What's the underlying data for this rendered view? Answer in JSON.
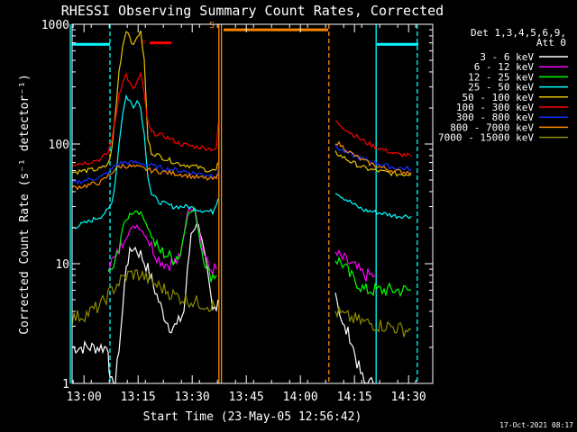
{
  "chart_data": {
    "type": "line",
    "title": "RHESSI Observing Summary Count Rates, Corrected",
    "xlabel": "Start Time (23-May-05 12:56:42)",
    "ylabel": "Corrected Count Rate (s⁻¹ detector⁻¹)",
    "yscale": "log",
    "ylim": [
      1,
      1000
    ],
    "xlim_min": [
      0,
      100
    ],
    "start_time": "12:56:42",
    "x_tick_labels": [
      {
        "t": 3.3,
        "label": "13:00"
      },
      {
        "t": 18.3,
        "label": "13:15"
      },
      {
        "t": 33.3,
        "label": "13:30"
      },
      {
        "t": 48.3,
        "label": "13:45"
      },
      {
        "t": 63.3,
        "label": "14:00"
      },
      {
        "t": 78.3,
        "label": "14:15"
      },
      {
        "t": 93.3,
        "label": "14:30"
      }
    ],
    "y_tick_labels": [
      {
        "v": 1,
        "label": "1"
      },
      {
        "v": 10,
        "label": "10"
      },
      {
        "v": 100,
        "label": "100"
      },
      {
        "v": 1000,
        "label": "1000"
      }
    ],
    "legend_header": [
      "Det 1,3,4,5,6,9,",
      "Att 0"
    ],
    "legend_placement": "right",
    "series": [
      {
        "name": "3 - 6 keV",
        "color": "#ffffff",
        "segments": [
          [
            [
              0,
              2
            ],
            [
              10,
              2
            ],
            [
              10.5,
              1
            ],
            [
              12,
              1
            ],
            [
              14,
              4
            ],
            [
              15,
              10
            ],
            [
              17,
              14
            ],
            [
              19,
              12
            ],
            [
              21,
              9
            ],
            [
              23,
              6
            ],
            [
              25,
              4
            ],
            [
              27,
              3
            ],
            [
              29,
              3
            ],
            [
              31,
              4
            ],
            [
              33,
              18
            ],
            [
              35,
              22
            ],
            [
              37,
              10
            ],
            [
              39,
              4
            ],
            [
              40.5,
              5
            ]
          ],
          [
            [
              73,
              6
            ],
            [
              75,
              3
            ],
            [
              77,
              2.5
            ],
            [
              79,
              1.5
            ],
            [
              81,
              1
            ],
            [
              84,
              1
            ]
          ]
        ]
      },
      {
        "name": "6 - 12 keV",
        "color": "#ff00ff",
        "segments": [
          [
            [
              10,
              10
            ],
            [
              12,
              11
            ],
            [
              14,
              15
            ],
            [
              16,
              19
            ],
            [
              18,
              21
            ],
            [
              20,
              18
            ],
            [
              22,
              14
            ],
            [
              24,
              11
            ],
            [
              26,
              10
            ],
            [
              28,
              10
            ],
            [
              30,
              11
            ],
            [
              32,
              28
            ],
            [
              34,
              30
            ],
            [
              36,
              14
            ],
            [
              38,
              9
            ],
            [
              40,
              9
            ]
          ],
          [
            [
              73,
              12
            ],
            [
              75,
              11
            ],
            [
              77,
              10
            ],
            [
              79,
              9
            ],
            [
              81,
              8
            ],
            [
              84,
              8
            ]
          ]
        ]
      },
      {
        "name": "12 - 25 keV",
        "color": "#00ff00",
        "segments": [
          [
            [
              10,
              8
            ],
            [
              12,
              10
            ],
            [
              14,
              20
            ],
            [
              16,
              26
            ],
            [
              18,
              28
            ],
            [
              20,
              24
            ],
            [
              22,
              17
            ],
            [
              24,
              13
            ],
            [
              26,
              12
            ],
            [
              28,
              11
            ],
            [
              30,
              12
            ],
            [
              32,
              26
            ],
            [
              34,
              28
            ],
            [
              36,
              13
            ],
            [
              38,
              8
            ],
            [
              40,
              8
            ]
          ],
          [
            [
              73,
              11
            ],
            [
              75,
              10
            ],
            [
              77,
              8
            ],
            [
              79,
              7
            ],
            [
              81,
              6
            ],
            [
              84,
              6
            ],
            [
              86,
              6
            ],
            [
              88,
              6
            ],
            [
              90,
              6
            ],
            [
              92,
              6
            ],
            [
              94,
              6
            ]
          ]
        ]
      },
      {
        "name": "25 - 50 keV",
        "color": "#00ffff",
        "segments": [
          [
            [
              0,
              20
            ],
            [
              4,
              22
            ],
            [
              8,
              25
            ],
            [
              10,
              28
            ],
            [
              11,
              32
            ],
            [
              12,
              50
            ],
            [
              13,
              100
            ],
            [
              14,
              180
            ],
            [
              15,
              250
            ],
            [
              16,
              230
            ],
            [
              17,
              200
            ],
            [
              18,
              240
            ],
            [
              19,
              200
            ],
            [
              20,
              120
            ],
            [
              21,
              55
            ],
            [
              22,
              38
            ],
            [
              24,
              33
            ],
            [
              28,
              30
            ],
            [
              32,
              30
            ],
            [
              36,
              28
            ],
            [
              39,
              27
            ],
            [
              40.5,
              35
            ]
          ],
          [
            [
              73,
              40
            ],
            [
              75,
              36
            ],
            [
              77,
              33
            ],
            [
              79,
              30
            ],
            [
              81,
              28
            ],
            [
              84,
              27
            ],
            [
              87,
              26
            ],
            [
              90,
              25
            ],
            [
              94,
              25
            ]
          ]
        ]
      },
      {
        "name": "50 - 100 keV",
        "color": "#e6c200",
        "segments": [
          [
            [
              0,
              58
            ],
            [
              4,
              60
            ],
            [
              8,
              62
            ],
            [
              10,
              68
            ],
            [
              11,
              90
            ],
            [
              12,
              180
            ],
            [
              13,
              400
            ],
            [
              14,
              650
            ],
            [
              15,
              900
            ],
            [
              16,
              800
            ],
            [
              17,
              650
            ],
            [
              18,
              800
            ],
            [
              19,
              850
            ],
            [
              20,
              500
            ],
            [
              21,
              110
            ],
            [
              22,
              85
            ],
            [
              26,
              75
            ],
            [
              30,
              68
            ],
            [
              34,
              65
            ],
            [
              38,
              60
            ],
            [
              40,
              60
            ],
            [
              40.5,
              70
            ]
          ],
          [
            [
              73,
              85
            ],
            [
              75,
              78
            ],
            [
              77,
              72
            ],
            [
              79,
              67
            ],
            [
              81,
              63
            ],
            [
              84,
              60
            ],
            [
              87,
              58
            ],
            [
              90,
              56
            ],
            [
              94,
              56
            ]
          ]
        ]
      },
      {
        "name": "100 - 300 keV",
        "color": "#ff0000",
        "segments": [
          [
            [
              0,
              68
            ],
            [
              4,
              70
            ],
            [
              8,
              75
            ],
            [
              10,
              85
            ],
            [
              11,
              110
            ],
            [
              12,
              160
            ],
            [
              13,
              260
            ],
            [
              14,
              330
            ],
            [
              15,
              380
            ],
            [
              16,
              320
            ],
            [
              17,
              280
            ],
            [
              18,
              330
            ],
            [
              19,
              380
            ],
            [
              20,
              260
            ],
            [
              21,
              150
            ],
            [
              22,
              125
            ],
            [
              26,
              115
            ],
            [
              30,
              100
            ],
            [
              34,
              95
            ],
            [
              38,
              92
            ],
            [
              40,
              90
            ],
            [
              40.5,
              150
            ]
          ],
          [
            [
              73,
              155
            ],
            [
              75,
              140
            ],
            [
              77,
              125
            ],
            [
              79,
              115
            ],
            [
              81,
              105
            ],
            [
              84,
              95
            ],
            [
              87,
              88
            ],
            [
              90,
              82
            ],
            [
              94,
              80
            ]
          ]
        ]
      },
      {
        "name": "300 - 800 keV",
        "color": "#1030ff",
        "segments": [
          [
            [
              0,
              47
            ],
            [
              4,
              50
            ],
            [
              8,
              53
            ],
            [
              10,
              58
            ],
            [
              12,
              66
            ],
            [
              14,
              70
            ],
            [
              16,
              70
            ],
            [
              18,
              70
            ],
            [
              20,
              68
            ],
            [
              22,
              66
            ],
            [
              26,
              62
            ],
            [
              30,
              60
            ],
            [
              34,
              57
            ],
            [
              38,
              55
            ],
            [
              40,
              55
            ],
            [
              40.5,
              62
            ]
          ],
          [
            [
              73,
              95
            ],
            [
              75,
              88
            ],
            [
              77,
              82
            ],
            [
              79,
              78
            ],
            [
              81,
              74
            ],
            [
              84,
              70
            ],
            [
              87,
              66
            ],
            [
              90,
              63
            ],
            [
              94,
              62
            ]
          ]
        ]
      },
      {
        "name": "800 - 7000 keV",
        "color": "#ff8800",
        "segments": [
          [
            [
              0,
              43
            ],
            [
              4,
              45
            ],
            [
              8,
              48
            ],
            [
              10,
              54
            ],
            [
              12,
              62
            ],
            [
              14,
              66
            ],
            [
              16,
              65
            ],
            [
              18,
              64
            ],
            [
              20,
              62
            ],
            [
              22,
              60
            ],
            [
              26,
              58
            ],
            [
              30,
              56
            ],
            [
              34,
              53
            ],
            [
              38,
              51
            ],
            [
              40,
              51
            ],
            [
              40.5,
              56
            ]
          ],
          [
            [
              73,
              105
            ],
            [
              75,
              95
            ],
            [
              77,
              85
            ],
            [
              79,
              78
            ],
            [
              81,
              72
            ],
            [
              84,
              66
            ],
            [
              87,
              62
            ],
            [
              90,
              59
            ],
            [
              94,
              58
            ]
          ]
        ]
      },
      {
        "name": "7000 - 15000 keV",
        "color": "#8b8b00",
        "segments": [
          [
            [
              0,
              3.5
            ],
            [
              4,
              3.8
            ],
            [
              8,
              4.5
            ],
            [
              10,
              5.5
            ],
            [
              12,
              6.5
            ],
            [
              14,
              7.5
            ],
            [
              16,
              8.2
            ],
            [
              18,
              8.2
            ],
            [
              20,
              7.8
            ],
            [
              22,
              7
            ],
            [
              24,
              6.5
            ],
            [
              26,
              6
            ],
            [
              28,
              5.5
            ],
            [
              30,
              5.2
            ],
            [
              34,
              4.8
            ],
            [
              38,
              4.5
            ],
            [
              40,
              4.3
            ]
          ],
          [
            [
              73,
              4
            ],
            [
              76,
              3.6
            ],
            [
              80,
              3.3
            ],
            [
              84,
              3.1
            ],
            [
              88,
              3
            ],
            [
              92,
              2.8
            ],
            [
              94,
              2.8
            ]
          ]
        ]
      }
    ],
    "flags": [
      {
        "label": "F",
        "color": "#ff0000",
        "t0": 21.5,
        "t1": 27.5,
        "v": 700
      },
      {
        "label": "S",
        "color": "#ff8800",
        "t0": 42,
        "t1": 71,
        "v": 900
      }
    ],
    "attenuator_bars": [
      {
        "color": "#00ffff",
        "t0": 0,
        "t1": 10.5,
        "v": 680
      },
      {
        "color": "#00ffff",
        "t0": 84.5,
        "t1": 96,
        "v": 680
      }
    ],
    "vlines": [
      {
        "t": -0.5,
        "color": "#00ffff",
        "style": "solid"
      },
      {
        "t": 10.5,
        "color": "#00ffff",
        "style": "dashed"
      },
      {
        "t": 40.7,
        "color": "#ff8800",
        "style": "solid"
      },
      {
        "t": 41.4,
        "color": "#ff8800",
        "style": "solid"
      },
      {
        "t": 71.2,
        "color": "#ff8800",
        "style": "dashed"
      },
      {
        "t": 84.3,
        "color": "#00ffff",
        "style": "solid"
      },
      {
        "t": 95.7,
        "color": "#00ffff",
        "style": "dashed"
      }
    ],
    "timestamp": "17-Oct-2021 08:17"
  }
}
